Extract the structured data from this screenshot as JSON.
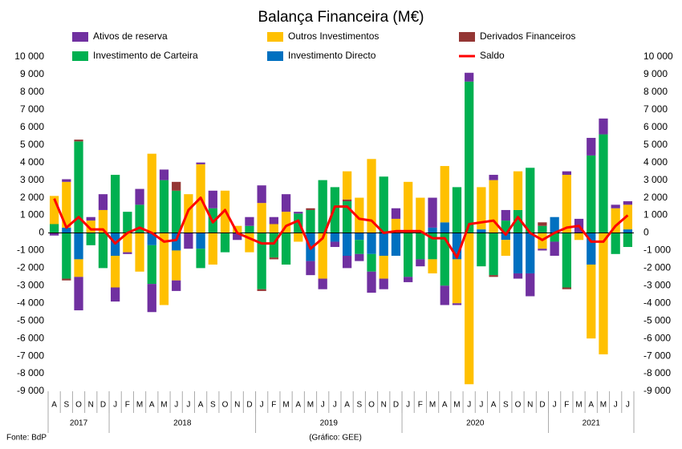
{
  "chart_data": {
    "type": "bar",
    "title": "Balança Financeira (M€)",
    "categories": [
      "A",
      "S",
      "O",
      "N",
      "D",
      "J",
      "F",
      "M",
      "A",
      "M",
      "J",
      "J",
      "A",
      "S",
      "O",
      "N",
      "D",
      "J",
      "F",
      "M",
      "A",
      "M",
      "J",
      "J",
      "A",
      "S",
      "O",
      "N",
      "D",
      "J",
      "F",
      "M",
      "A",
      "M",
      "J",
      "J",
      "A",
      "S",
      "O",
      "N",
      "D",
      "J",
      "F",
      "M",
      "A",
      "M",
      "J",
      "J"
    ],
    "years": [
      "2017",
      "2018",
      "2019",
      "2020",
      "2021"
    ],
    "series": [
      {
        "name": "Ativos de reserva",
        "color": "#7030a0",
        "values": [
          -150,
          150,
          -1900,
          200,
          900,
          -800,
          -100,
          900,
          -1600,
          600,
          -600,
          -900,
          100,
          1000,
          0,
          -400,
          500,
          1000,
          400,
          1000,
          100,
          -800,
          -600,
          -300,
          -700,
          -400,
          -1200,
          -600,
          600,
          -300,
          -400,
          1700,
          -1100,
          -100,
          500,
          0,
          300,
          600,
          -300,
          -1300,
          -100,
          -800,
          200,
          800,
          1000,
          900,
          200,
          200
        ]
      },
      {
        "name": "Outros Investimentos",
        "color": "#ffc000",
        "values": [
          1600,
          2600,
          -1000,
          700,
          1300,
          -1800,
          -1100,
          -2200,
          4500,
          -4100,
          -1700,
          2200,
          3900,
          -1800,
          2400,
          400,
          -1100,
          1700,
          500,
          1200,
          -500,
          0,
          -2600,
          0,
          1600,
          2000,
          4200,
          -1300,
          800,
          2900,
          2000,
          -800,
          3200,
          -2500,
          -8600,
          2400,
          3000,
          -900,
          2200,
          0,
          -900,
          0,
          3300,
          -400,
          -4200,
          -6900,
          1400,
          1400
        ]
      },
      {
        "name": "Derivados Financeiros",
        "color": "#943634",
        "values": [
          0,
          -100,
          100,
          0,
          0,
          0,
          0,
          0,
          0,
          0,
          500,
          0,
          0,
          0,
          0,
          0,
          0,
          -100,
          -100,
          0,
          0,
          100,
          0,
          0,
          100,
          0,
          0,
          0,
          0,
          0,
          0,
          0,
          0,
          0,
          0,
          0,
          -100,
          0,
          0,
          0,
          200,
          0,
          -100,
          0,
          0,
          0,
          0,
          0
        ]
      },
      {
        "name": "Investimento de Carteira",
        "color": "#00b050",
        "values": [
          500,
          -2600,
          5200,
          -700,
          -2000,
          3300,
          1200,
          1600,
          -2200,
          3000,
          2400,
          0,
          -1100,
          1400,
          -1100,
          0,
          400,
          -3200,
          -1400,
          -1800,
          1100,
          1300,
          3000,
          2600,
          1800,
          -800,
          -1000,
          3200,
          0,
          -2500,
          -1500,
          -1500,
          -3000,
          2600,
          8600,
          -1900,
          -2400,
          700,
          1300,
          3700,
          400,
          -500,
          -3100,
          0,
          4400,
          5600,
          -1200,
          -800
        ]
      },
      {
        "name": "Investimento Directo",
        "color": "#0070c0",
        "values": [
          0,
          300,
          -1500,
          0,
          0,
          -1300,
          0,
          0,
          -700,
          0,
          -1000,
          0,
          -900,
          0,
          0,
          0,
          0,
          0,
          0,
          0,
          0,
          -1600,
          0,
          -500,
          -1300,
          -400,
          -1200,
          -1300,
          -1300,
          0,
          0,
          300,
          600,
          -1500,
          0,
          200,
          0,
          -400,
          -2300,
          -2300,
          0,
          900,
          0,
          0,
          -1800,
          0,
          0,
          200
        ]
      },
      {
        "name": "Saldo",
        "type": "line",
        "color": "#ff0000",
        "values": [
          1950,
          300,
          900,
          200,
          200,
          -600,
          0,
          300,
          0,
          -500,
          -400,
          1300,
          2000,
          600,
          1300,
          0,
          -300,
          -600,
          -600,
          400,
          700,
          -900,
          -300,
          1500,
          1500,
          800,
          700,
          0,
          100,
          100,
          100,
          -300,
          -300,
          -1400,
          500,
          600,
          700,
          -100,
          900,
          0,
          -400,
          0,
          300,
          400,
          -500,
          -500,
          400,
          1000
        ]
      }
    ],
    "ylim": [
      -9000,
      10000
    ],
    "yticks": [
      {
        "value": -9000,
        "label": "-9 000"
      },
      {
        "value": -8000,
        "label": "-8 000"
      },
      {
        "value": -7000,
        "label": "-7 000"
      },
      {
        "value": -6000,
        "label": "-6 000"
      },
      {
        "value": -5000,
        "label": "-5 000"
      },
      {
        "value": -4000,
        "label": "-4 000"
      },
      {
        "value": -3000,
        "label": "-3 000"
      },
      {
        "value": -2000,
        "label": "-2 000"
      },
      {
        "value": -1000,
        "label": "-1 000"
      },
      0,
      {
        "value": 1000,
        "label": "1 000"
      },
      {
        "value": 2000,
        "label": "2 000"
      },
      {
        "value": 3000,
        "label": "3 000"
      },
      {
        "value": 4000,
        "label": "4 000"
      },
      {
        "value": 5000,
        "label": "5 000"
      },
      {
        "value": 6000,
        "label": "6 000"
      },
      {
        "value": 7000,
        "label": "7 000"
      },
      {
        "value": 8000,
        "label": "8 000"
      },
      {
        "value": 9000,
        "label": "9 000"
      },
      {
        "value": 10000,
        "label": "10 000"
      }
    ],
    "grid": false,
    "source": "Fonte: BdP",
    "credit": "(Gráfico: GEE)"
  }
}
